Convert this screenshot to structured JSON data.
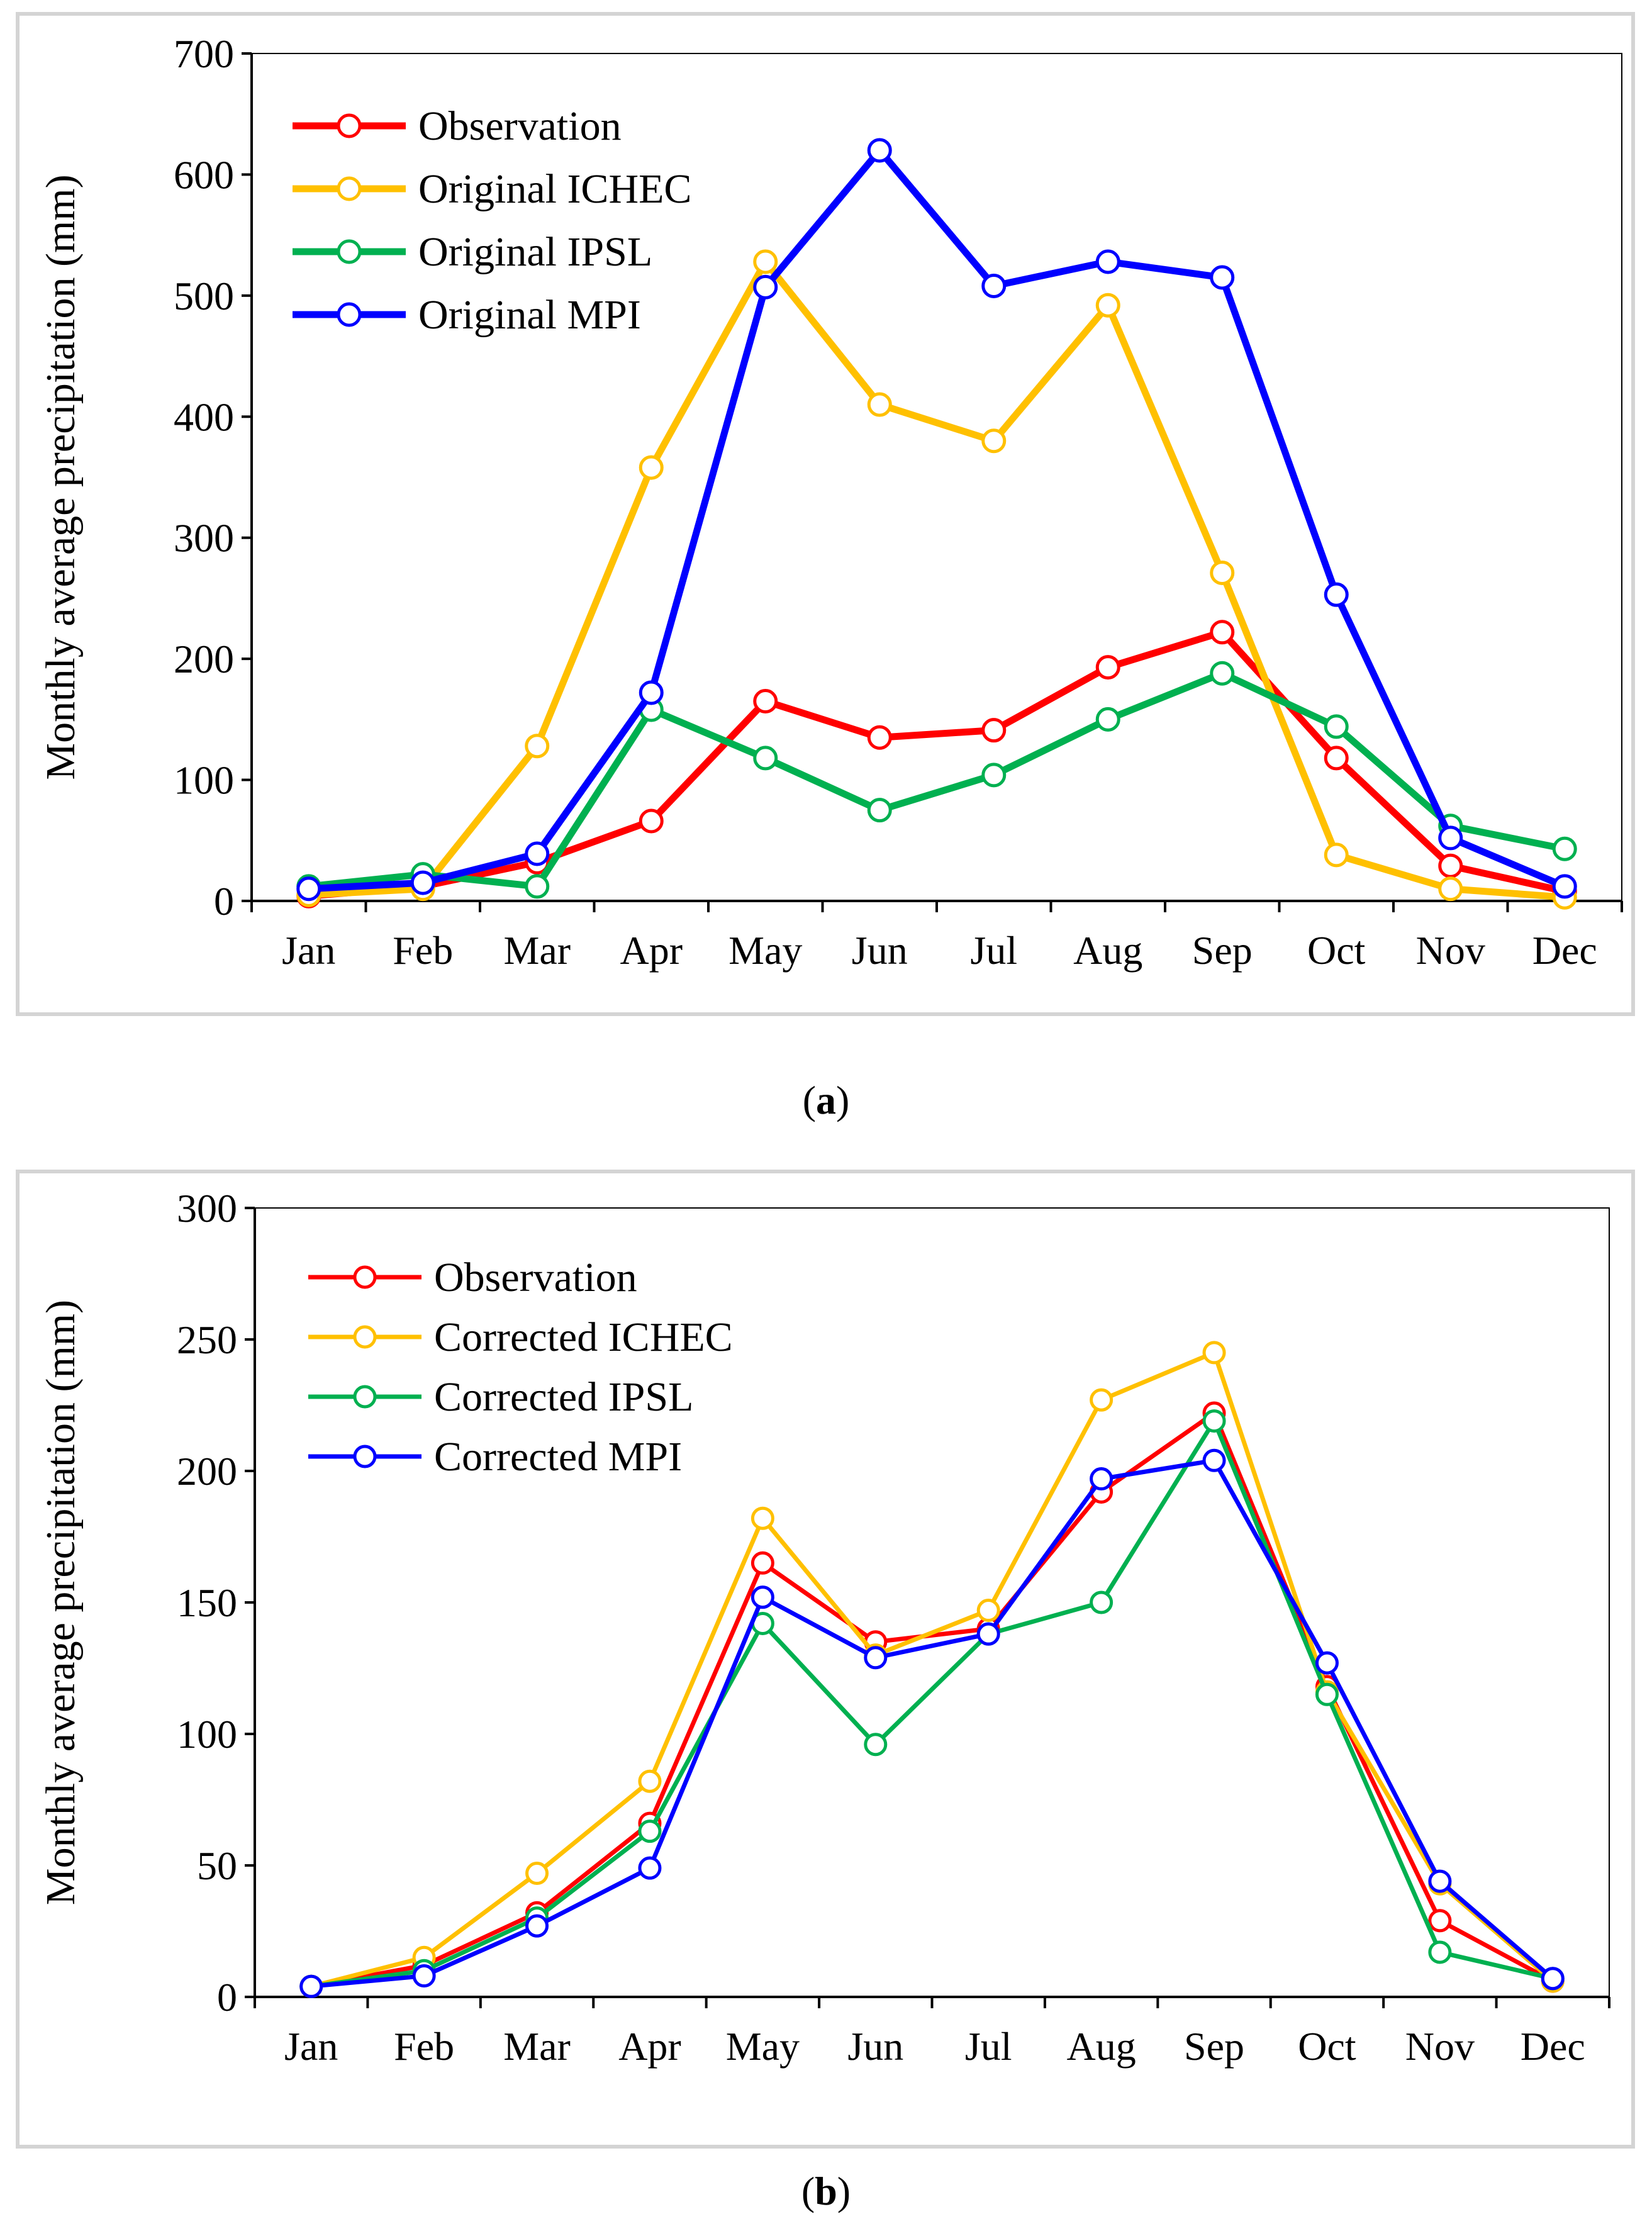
{
  "colors": {
    "observation": "#ff0000",
    "ichec": "#ffc000",
    "ipsl": "#00b050",
    "mpi": "#0000ff"
  },
  "chart_data": [
    {
      "type": "line",
      "panel": "a",
      "caption": "a",
      "ylabel": "Monthly average precipitation (mm)",
      "xlabel": "",
      "ylim": [
        0,
        700
      ],
      "yticks": [
        0,
        100,
        200,
        300,
        400,
        500,
        600,
        700
      ],
      "categories": [
        "Jan",
        "Feb",
        "Mar",
        "Apr",
        "May",
        "Jun",
        "Jul",
        "Aug",
        "Sep",
        "Oct",
        "Nov",
        "Dec"
      ],
      "legend_position": "top-left",
      "series": [
        {
          "name": "Observation",
          "color_key": "observation",
          "values": [
            4,
            12,
            32,
            66,
            165,
            135,
            141,
            193,
            222,
            118,
            29,
            8
          ]
        },
        {
          "name": "Original ICHEC",
          "color_key": "ichec",
          "values": [
            5,
            10,
            128,
            358,
            528,
            410,
            380,
            492,
            271,
            38,
            10,
            3
          ]
        },
        {
          "name": "Original IPSL",
          "color_key": "ipsl",
          "values": [
            12,
            22,
            12,
            158,
            118,
            75,
            104,
            150,
            188,
            144,
            62,
            43
          ]
        },
        {
          "name": "Original MPI",
          "color_key": "mpi",
          "values": [
            10,
            15,
            39,
            172,
            507,
            620,
            508,
            528,
            515,
            253,
            52,
            12
          ]
        }
      ]
    },
    {
      "type": "line",
      "panel": "b",
      "caption": "b",
      "ylabel": "Monthly average precipitation (mm)",
      "xlabel": "",
      "ylim": [
        0,
        300
      ],
      "yticks": [
        0,
        50,
        100,
        150,
        200,
        250,
        300
      ],
      "categories": [
        "Jan",
        "Feb",
        "Mar",
        "Apr",
        "May",
        "Jun",
        "Jul",
        "Aug",
        "Sep",
        "Oct",
        "Nov",
        "Dec"
      ],
      "legend_position": "top-left",
      "series": [
        {
          "name": "Observation",
          "color_key": "observation",
          "values": [
            4,
            12,
            32,
            66,
            165,
            135,
            140,
            192,
            222,
            118,
            29,
            6
          ]
        },
        {
          "name": "Corrected ICHEC",
          "color_key": "ichec",
          "values": [
            4,
            15,
            47,
            82,
            182,
            130,
            147,
            227,
            245,
            116,
            43,
            6
          ]
        },
        {
          "name": "Corrected IPSL",
          "color_key": "ipsl",
          "values": [
            4,
            10,
            30,
            63,
            142,
            96,
            138,
            150,
            219,
            115,
            17,
            7
          ]
        },
        {
          "name": "Corrected MPI",
          "color_key": "mpi",
          "values": [
            4,
            8,
            27,
            49,
            152,
            129,
            138,
            197,
            204,
            127,
            44,
            7
          ]
        }
      ]
    }
  ]
}
